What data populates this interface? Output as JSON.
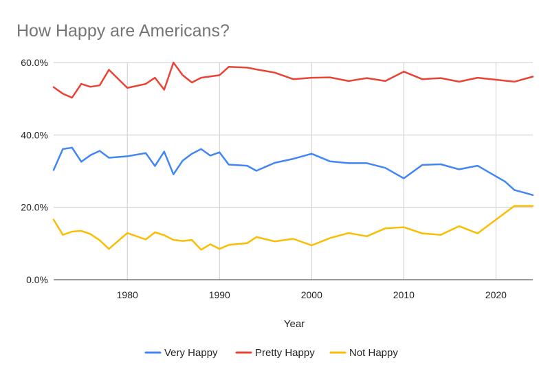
{
  "chart_data": {
    "type": "line",
    "title": "How Happy are Americans?",
    "xlabel": "Year",
    "ylabel": "",
    "xlim": [
      1972,
      2024
    ],
    "ylim": [
      0,
      60
    ],
    "x_ticks": [
      1980,
      1990,
      2000,
      2010,
      2020
    ],
    "y_ticks": [
      {
        "value": 0,
        "label": "0.0%"
      },
      {
        "value": 20,
        "label": "20.0%"
      },
      {
        "value": 40,
        "label": "40.0%"
      },
      {
        "value": 60,
        "label": "60.0%"
      }
    ],
    "grid": true,
    "legend_position": "bottom",
    "series": [
      {
        "name": "Very Happy",
        "color": "#4285f4",
        "points": [
          [
            1972,
            30.3
          ],
          [
            1973,
            36.1
          ],
          [
            1974,
            36.5
          ],
          [
            1975,
            32.6
          ],
          [
            1976,
            34.4
          ],
          [
            1977,
            35.6
          ],
          [
            1978,
            33.7
          ],
          [
            1980,
            34.1
          ],
          [
            1982,
            35.0
          ],
          [
            1983,
            31.4
          ],
          [
            1984,
            35.4
          ],
          [
            1985,
            29.1
          ],
          [
            1986,
            32.9
          ],
          [
            1987,
            34.8
          ],
          [
            1988,
            36.1
          ],
          [
            1989,
            34.3
          ],
          [
            1990,
            35.2
          ],
          [
            1991,
            31.8
          ],
          [
            1993,
            31.5
          ],
          [
            1994,
            30.1
          ],
          [
            1996,
            32.3
          ],
          [
            1998,
            33.4
          ],
          [
            2000,
            34.8
          ],
          [
            2002,
            32.7
          ],
          [
            2004,
            32.2
          ],
          [
            2006,
            32.2
          ],
          [
            2008,
            30.9
          ],
          [
            2010,
            28.0
          ],
          [
            2012,
            31.7
          ],
          [
            2014,
            31.9
          ],
          [
            2016,
            30.5
          ],
          [
            2018,
            31.5
          ],
          [
            2021,
            27.1
          ],
          [
            2022,
            24.8
          ],
          [
            2024,
            23.4
          ]
        ]
      },
      {
        "name": "Pretty Happy",
        "color": "#ea4335",
        "points": [
          [
            1972,
            53.2
          ],
          [
            1973,
            51.4
          ],
          [
            1974,
            50.3
          ],
          [
            1975,
            54.1
          ],
          [
            1976,
            53.3
          ],
          [
            1977,
            53.7
          ],
          [
            1978,
            58.0
          ],
          [
            1980,
            53.0
          ],
          [
            1982,
            54.1
          ],
          [
            1983,
            55.8
          ],
          [
            1984,
            52.5
          ],
          [
            1985,
            60.0
          ],
          [
            1986,
            56.5
          ],
          [
            1987,
            54.5
          ],
          [
            1988,
            55.8
          ],
          [
            1990,
            56.5
          ],
          [
            1991,
            58.8
          ],
          [
            1993,
            58.6
          ],
          [
            1994,
            58.1
          ],
          [
            1996,
            57.2
          ],
          [
            1998,
            55.4
          ],
          [
            2000,
            55.8
          ],
          [
            2002,
            55.9
          ],
          [
            2004,
            54.9
          ],
          [
            2006,
            55.7
          ],
          [
            2008,
            54.9
          ],
          [
            2010,
            57.5
          ],
          [
            2012,
            55.4
          ],
          [
            2014,
            55.7
          ],
          [
            2016,
            54.7
          ],
          [
            2018,
            55.8
          ],
          [
            2022,
            54.7
          ],
          [
            2024,
            56.1
          ]
        ]
      },
      {
        "name": "Not Happy",
        "color": "#fbbc04",
        "points": [
          [
            1972,
            16.6
          ],
          [
            1973,
            12.4
          ],
          [
            1974,
            13.3
          ],
          [
            1975,
            13.5
          ],
          [
            1976,
            12.6
          ],
          [
            1977,
            10.9
          ],
          [
            1978,
            8.5
          ],
          [
            1980,
            12.9
          ],
          [
            1982,
            11.1
          ],
          [
            1983,
            13.1
          ],
          [
            1984,
            12.3
          ],
          [
            1985,
            11.0
          ],
          [
            1986,
            10.7
          ],
          [
            1987,
            11.0
          ],
          [
            1988,
            8.3
          ],
          [
            1989,
            9.8
          ],
          [
            1990,
            8.5
          ],
          [
            1991,
            9.6
          ],
          [
            1993,
            10.1
          ],
          [
            1994,
            11.8
          ],
          [
            1996,
            10.6
          ],
          [
            1998,
            11.3
          ],
          [
            2000,
            9.5
          ],
          [
            2002,
            11.5
          ],
          [
            2004,
            12.9
          ],
          [
            2006,
            12.0
          ],
          [
            2008,
            14.2
          ],
          [
            2010,
            14.5
          ],
          [
            2012,
            12.8
          ],
          [
            2014,
            12.4
          ],
          [
            2016,
            14.8
          ],
          [
            2018,
            12.8
          ],
          [
            2022,
            20.4
          ],
          [
            2024,
            20.4
          ]
        ]
      }
    ]
  }
}
